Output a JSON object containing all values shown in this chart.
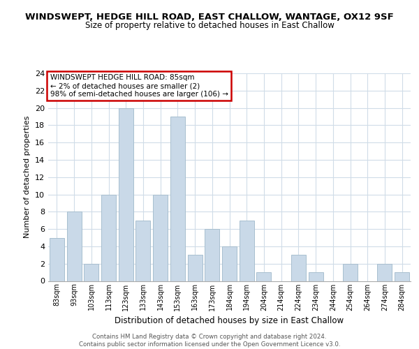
{
  "title": "WINDSWEPT, HEDGE HILL ROAD, EAST CHALLOW, WANTAGE, OX12 9SF",
  "subtitle": "Size of property relative to detached houses in East Challow",
  "xlabel": "Distribution of detached houses by size in East Challow",
  "ylabel": "Number of detached properties",
  "bin_labels": [
    "83sqm",
    "93sqm",
    "103sqm",
    "113sqm",
    "123sqm",
    "133sqm",
    "143sqm",
    "153sqm",
    "163sqm",
    "173sqm",
    "184sqm",
    "194sqm",
    "204sqm",
    "214sqm",
    "224sqm",
    "234sqm",
    "244sqm",
    "254sqm",
    "264sqm",
    "274sqm",
    "284sqm"
  ],
  "bar_values": [
    5,
    8,
    2,
    10,
    20,
    7,
    10,
    19,
    3,
    6,
    4,
    7,
    1,
    0,
    3,
    1,
    0,
    2,
    0,
    2,
    1
  ],
  "bar_color": "#c9d9e8",
  "bar_edge_color": "#a8bfcf",
  "ylim": [
    0,
    24
  ],
  "yticks": [
    0,
    2,
    4,
    6,
    8,
    10,
    12,
    14,
    16,
    18,
    20,
    22,
    24
  ],
  "annotation_line1": "WINDSWEPT HEDGE HILL ROAD: 85sqm",
  "annotation_line2": "← 2% of detached houses are smaller (2)",
  "annotation_line3": "98% of semi-detached houses are larger (106) →",
  "annotation_box_color": "#ffffff",
  "annotation_border_color": "#cc0000",
  "footer_text": "Contains HM Land Registry data © Crown copyright and database right 2024.\nContains public sector information licensed under the Open Government Licence v3.0.",
  "grid_color": "#d0dce8",
  "background_color": "#ffffff"
}
